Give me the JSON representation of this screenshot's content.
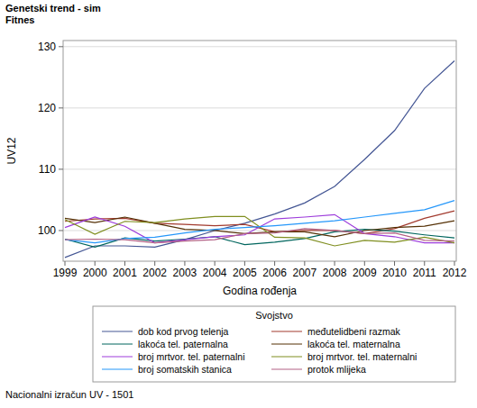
{
  "chart_data": {
    "type": "line",
    "title": "Genetski trend - sim",
    "subtitle": "Fitnes",
    "x_label": "Godina rođenja",
    "y_label": "UV12",
    "legend_title": "Svojstvo",
    "footnote": "Nacionalni izračun UV - 1501",
    "x": [
      1999,
      2000,
      2001,
      2002,
      2003,
      2004,
      2005,
      2006,
      2007,
      2008,
      2009,
      2010,
      2011,
      2012
    ],
    "xlim": [
      1999,
      2012
    ],
    "xticks": [
      1999,
      2000,
      2001,
      2002,
      2003,
      2004,
      2005,
      2006,
      2007,
      2008,
      2009,
      2010,
      2011,
      2012
    ],
    "ylim": [
      95,
      131
    ],
    "yticks": [
      100,
      110,
      120,
      130
    ],
    "grid": true,
    "legend": "bottom",
    "series": [
      {
        "name": "dob kod prvog telenja",
        "color": "#445694",
        "values": [
          95.6,
          97.5,
          97.5,
          97.3,
          98.5,
          100.0,
          101.2,
          102.7,
          104.5,
          107.2,
          111.6,
          116.3,
          123.2,
          127.7
        ]
      },
      {
        "name": "međutelidbeni razmak",
        "color": "#a23a2e",
        "values": [
          101.5,
          101.9,
          102.0,
          101.2,
          101.0,
          100.8,
          101.0,
          99.8,
          100.0,
          100.0,
          99.5,
          100.3,
          102.0,
          103.2
        ]
      },
      {
        "name": "lakoća tel. paternalna",
        "color": "#01665e",
        "values": [
          98.6,
          97.3,
          98.8,
          98.3,
          98.6,
          99.0,
          97.7,
          98.1,
          98.7,
          99.8,
          100.2,
          99.9,
          99.3,
          98.8
        ]
      },
      {
        "name": "lakoća tel. maternalna",
        "color": "#543005",
        "values": [
          102.0,
          101.3,
          102.2,
          101.2,
          100.2,
          100.0,
          99.5,
          99.8,
          99.8,
          99.0,
          100.0,
          100.5,
          100.7,
          101.6
        ]
      },
      {
        "name": "broj mrtvor. tel. paternalni",
        "color": "#9d3cdb",
        "values": [
          100.5,
          102.2,
          100.7,
          98.0,
          98.5,
          99.0,
          99.3,
          101.9,
          102.2,
          102.6,
          99.5,
          99.0,
          98.0,
          98.0
        ]
      },
      {
        "name": "broj mrtvor. tel. maternalni",
        "color": "#7f8e1f",
        "values": [
          101.8,
          99.4,
          101.5,
          101.3,
          101.9,
          102.3,
          102.3,
          98.9,
          98.8,
          97.5,
          98.4,
          98.1,
          98.9,
          98.0
        ]
      },
      {
        "name": "broj somatskih stanica",
        "color": "#2597fa",
        "values": [
          98.5,
          98.0,
          98.7,
          98.9,
          99.6,
          100.2,
          100.5,
          100.8,
          101.2,
          101.6,
          102.2,
          102.8,
          103.4,
          104.9
        ]
      },
      {
        "name": "protok mlijeka",
        "color": "#b26084",
        "values": [
          98.5,
          98.6,
          98.5,
          98.0,
          98.3,
          98.5,
          99.5,
          99.6,
          100.3,
          100.0,
          99.5,
          99.6,
          98.4,
          98.3
        ]
      }
    ]
  }
}
